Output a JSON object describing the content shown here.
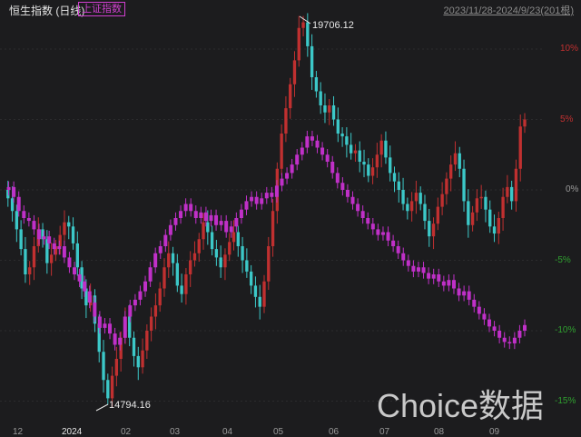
{
  "header": {
    "title": "恒生指数 (日线)",
    "compare_label": "上证指数",
    "range_label": "2023/11/28-2024/9/23(201根)"
  },
  "watermark": "Choice数据",
  "colors": {
    "background": "#1c1c1e",
    "up": "#c03030",
    "down": "#3cc8c8",
    "compare": "#c030c8",
    "grid": "#2c2c2e",
    "axis_text_pos": "#c03030",
    "axis_text_neg": "#30a030"
  },
  "chart_data": {
    "type": "line",
    "title": "恒生指数 (日线)",
    "y_axis": {
      "unit": "%",
      "ticks": [
        "10%",
        "5%",
        "0%",
        "-5%",
        "-10%",
        "-15%"
      ],
      "values": [
        10,
        5,
        0,
        -5,
        -10,
        -15
      ],
      "range": [
        -15.5,
        12.5
      ]
    },
    "x_axis": {
      "ticks": [
        "12",
        "2024",
        "02",
        "03",
        "04",
        "05",
        "06",
        "07",
        "08",
        "09"
      ]
    },
    "annotations": {
      "high": "19706.12",
      "low": "14794.16"
    },
    "series": [
      {
        "name": "恒生指数",
        "values": [
          0,
          -0.6,
          -1.5,
          -2.8,
          -4.2,
          -6.0,
          -5.5,
          -4.0,
          -2.8,
          -3.5,
          -5.2,
          -4.6,
          -4.0,
          -3.2,
          -2.3,
          -2.6,
          -3.8,
          -5.5,
          -7.0,
          -8.2,
          -7.5,
          -9.5,
          -11.5,
          -13.5,
          -14.8,
          -13.2,
          -12.0,
          -10.5,
          -9.0,
          -10.5,
          -11.8,
          -12.6,
          -11.4,
          -10.0,
          -9.0,
          -8.2,
          -7.0,
          -5.5,
          -4.5,
          -5.2,
          -6.8,
          -7.4,
          -6.0,
          -5.0,
          -4.5,
          -3.5,
          -2.3,
          -3.0,
          -4.2,
          -4.8,
          -5.5,
          -4.6,
          -3.7,
          -3.0,
          -4.0,
          -5.0,
          -5.8,
          -6.8,
          -7.6,
          -8.3,
          -6.5,
          -4.0,
          -1.5,
          1.5,
          4.0,
          5.8,
          7.5,
          9.2,
          11.5,
          11.9,
          10.2,
          8.0,
          7.0,
          6.0,
          5.5,
          6.0,
          5.0,
          4.0,
          3.8,
          3.2,
          2.6,
          2.8,
          2.0,
          1.8,
          1.0,
          1.6,
          2.5,
          3.5,
          2.3,
          1.2,
          0.6,
          0.0,
          -1.0,
          -1.5,
          -0.8,
          -0.2,
          -1.0,
          -2.2,
          -3.3,
          -2.4,
          -1.2,
          -0.3,
          0.8,
          1.8,
          2.6,
          1.5,
          -0.8,
          -2.5,
          -1.6,
          -0.6,
          -0.5,
          -1.4,
          -2.6,
          -3.1,
          -2.0,
          -0.5,
          0.2,
          -0.8,
          1.5,
          4.5,
          5.0
        ]
      },
      {
        "name": "上证指数",
        "values": [
          0,
          0.2,
          -0.5,
          -1.5,
          -2.0,
          -2.2,
          -2.8,
          -3.5,
          -3.3,
          -3.8,
          -4.2,
          -4.0,
          -4.8,
          -5.5,
          -6.0,
          -6.5,
          -7.2,
          -8.0,
          -9.0,
          -9.8,
          -9.5,
          -10.2,
          -11.0,
          -10.5,
          -9.0,
          -8.2,
          -7.8,
          -7.2,
          -6.5,
          -5.5,
          -4.5,
          -4.0,
          -3.2,
          -2.5,
          -2.0,
          -1.5,
          -1.0,
          -1.5,
          -2.0,
          -1.6,
          -2.2,
          -1.8,
          -2.5,
          -2.2,
          -3.0,
          -2.6,
          -2.0,
          -1.4,
          -0.8,
          -0.5,
          -1.0,
          -0.6,
          -0.2,
          -0.5,
          0.3,
          0.8,
          1.2,
          1.8,
          2.5,
          3.0,
          3.8,
          3.5,
          3.0,
          2.5,
          2.0,
          1.2,
          0.5,
          0,
          -0.5,
          -1.0,
          -1.5,
          -2.0,
          -2.4,
          -2.8,
          -3.2,
          -3.0,
          -3.6,
          -4.0,
          -4.5,
          -5.0,
          -5.4,
          -5.8,
          -5.5,
          -5.9,
          -6.3,
          -6.0,
          -6.5,
          -6.8,
          -6.4,
          -7.0,
          -7.5,
          -7.2,
          -7.8,
          -8.3,
          -8.8,
          -9.2,
          -9.7,
          -10.0,
          -10.5,
          -10.8,
          -10.9,
          -10.5,
          -10.0,
          -9.6
        ]
      }
    ]
  }
}
